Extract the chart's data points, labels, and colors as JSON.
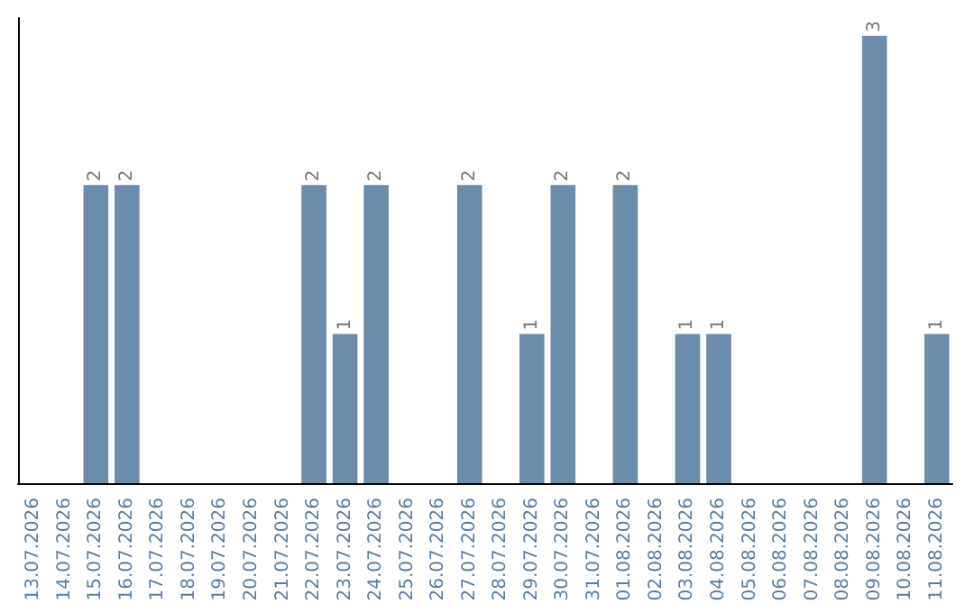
{
  "chart_data": {
    "type": "bar",
    "categories": [
      "13.07.2026",
      "14.07.2026",
      "15.07.2026",
      "16.07.2026",
      "17.07.2026",
      "18.07.2026",
      "19.07.2026",
      "20.07.2026",
      "21.07.2026",
      "22.07.2026",
      "23.07.2026",
      "24.07.2026",
      "25.07.2026",
      "26.07.2026",
      "27.07.2026",
      "28.07.2026",
      "29.07.2026",
      "30.07.2026",
      "31.07.2026",
      "01.08.2026",
      "02.08.2026",
      "03.08.2026",
      "04.08.2026",
      "05.08.2026",
      "06.08.2026",
      "07.08.2026",
      "08.08.2026",
      "09.08.2026",
      "10.08.2026",
      "11.08.2026"
    ],
    "values": [
      0,
      0,
      2,
      2,
      0,
      0,
      0,
      0,
      0,
      2,
      1,
      2,
      0,
      0,
      2,
      0,
      1,
      2,
      0,
      2,
      0,
      1,
      1,
      0,
      0,
      0,
      0,
      3,
      0,
      1
    ],
    "value_labels": [
      null,
      null,
      "2",
      "2",
      null,
      null,
      null,
      null,
      null,
      "2",
      "1",
      "2",
      null,
      null,
      "2",
      null,
      "1",
      "2",
      null,
      "2",
      null,
      "1",
      "1",
      null,
      null,
      null,
      null,
      "3",
      null,
      "1"
    ],
    "color": "#6b8cab",
    "tick_labels": "x"
  }
}
